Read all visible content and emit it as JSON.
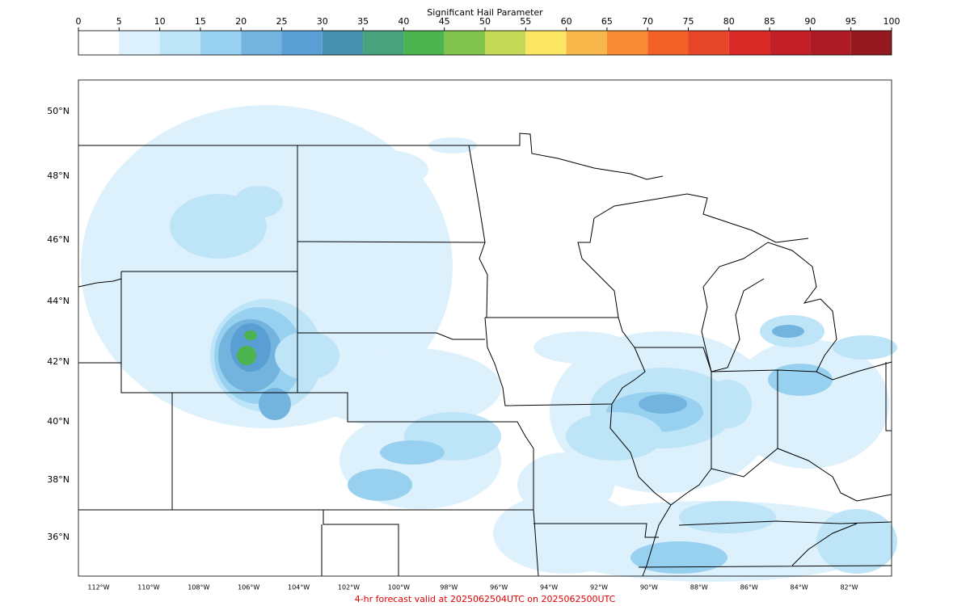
{
  "colorbar": {
    "title": "Significant Hail Parameter",
    "ticks": [
      0,
      5,
      10,
      15,
      20,
      25,
      30,
      35,
      40,
      45,
      50,
      55,
      60,
      65,
      70,
      75,
      80,
      85,
      90,
      95,
      100
    ],
    "colors": [
      "#ffffff",
      "#ddf1fc",
      "#bde4f7",
      "#98d1f0",
      "#73b4de",
      "#5a9fd4",
      "#4791b0",
      "#48a27c",
      "#4bb44e",
      "#80c34d",
      "#c3d956",
      "#fbe761",
      "#f8b74a",
      "#f68b33",
      "#f26127",
      "#e64729",
      "#da2a27",
      "#c31f26",
      "#ad1b24",
      "#941a1f"
    ]
  },
  "map": {
    "lat_labels": [
      "50°N",
      "48°N",
      "46°N",
      "44°N",
      "42°N",
      "40°N",
      "38°N",
      "36°N"
    ],
    "lon_labels": [
      "112°W",
      "110°W",
      "108°W",
      "106°W",
      "104°W",
      "102°W",
      "100°W",
      "98°W",
      "96°W",
      "94°W",
      "92°W",
      "90°W",
      "88°W",
      "86°W",
      "84°W",
      "82°W"
    ]
  },
  "footer": "4-hr forecast valid at 2025062504UTC on 2025062500UTC"
}
